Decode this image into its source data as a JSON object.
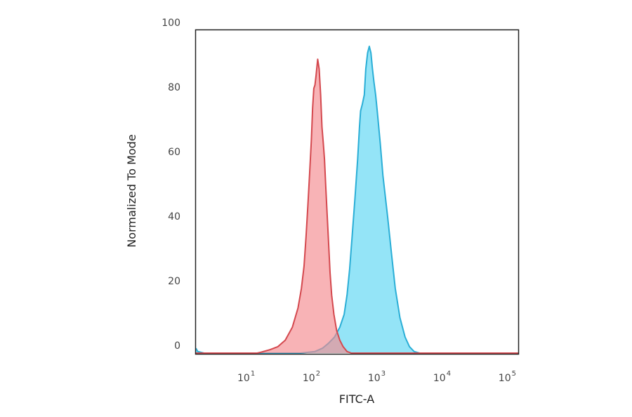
{
  "chart_data": {
    "type": "area",
    "title": "",
    "xlabel": "FITC-A",
    "ylabel": "Normalized To Mode",
    "xscale": "log",
    "xlim": [
      1.5,
      130000
    ],
    "ylim": [
      0,
      100
    ],
    "yticks": [
      {
        "value": 0,
        "label": "0"
      },
      {
        "value": 20,
        "label": "20"
      },
      {
        "value": 40,
        "label": "40"
      },
      {
        "value": 60,
        "label": "60"
      },
      {
        "value": 80,
        "label": "80"
      },
      {
        "value": 100,
        "label": "100"
      }
    ],
    "xticks": [
      {
        "value": 10,
        "base": "10",
        "exp": "1"
      },
      {
        "value": 100,
        "base": "10",
        "exp": "2"
      },
      {
        "value": 1000,
        "base": "10",
        "exp": "3"
      },
      {
        "value": 10000,
        "base": "10",
        "exp": "4"
      },
      {
        "value": 100000,
        "base": "10",
        "exp": "5"
      }
    ],
    "grid": false,
    "legend": "none",
    "series": [
      {
        "color": "#5bd6f2",
        "stroke": "#2aaed6",
        "points": [
          [
            1.5,
            1.5
          ],
          [
            1.6,
            0.5
          ],
          [
            2,
            0
          ],
          [
            60,
            0
          ],
          [
            100,
            0.5
          ],
          [
            130,
            1.5
          ],
          [
            160,
            3
          ],
          [
            200,
            5
          ],
          [
            240,
            8
          ],
          [
            280,
            12
          ],
          [
            310,
            18
          ],
          [
            340,
            26
          ],
          [
            370,
            36
          ],
          [
            410,
            48
          ],
          [
            450,
            60
          ],
          [
            480,
            70
          ],
          [
            500,
            75
          ],
          [
            530,
            77
          ],
          [
            570,
            80
          ],
          [
            600,
            88
          ],
          [
            640,
            93
          ],
          [
            680,
            95
          ],
          [
            720,
            93
          ],
          [
            760,
            88
          ],
          [
            800,
            84
          ],
          [
            850,
            80
          ],
          [
            900,
            75
          ],
          [
            1000,
            65
          ],
          [
            1100,
            55
          ],
          [
            1300,
            42
          ],
          [
            1500,
            30
          ],
          [
            1700,
            20
          ],
          [
            2000,
            11
          ],
          [
            2400,
            5
          ],
          [
            2800,
            2
          ],
          [
            3300,
            0.5
          ],
          [
            4000,
            0
          ],
          [
            130000,
            0
          ]
        ]
      },
      {
        "color": "#f48a8f",
        "stroke": "#d4484e",
        "points": [
          [
            1.5,
            0
          ],
          [
            13,
            0
          ],
          [
            15,
            0.3
          ],
          [
            20,
            1
          ],
          [
            27,
            2
          ],
          [
            35,
            4
          ],
          [
            45,
            8
          ],
          [
            55,
            14
          ],
          [
            62,
            20
          ],
          [
            68,
            27
          ],
          [
            73,
            36
          ],
          [
            78,
            46
          ],
          [
            83,
            56
          ],
          [
            88,
            66
          ],
          [
            92,
            76
          ],
          [
            96,
            82
          ],
          [
            100,
            83
          ],
          [
            104,
            86
          ],
          [
            110,
            91
          ],
          [
            116,
            88
          ],
          [
            122,
            80
          ],
          [
            128,
            70
          ],
          [
            134,
            65
          ],
          [
            140,
            60
          ],
          [
            146,
            52
          ],
          [
            152,
            45
          ],
          [
            160,
            36
          ],
          [
            170,
            25
          ],
          [
            180,
            18
          ],
          [
            195,
            12
          ],
          [
            215,
            7
          ],
          [
            240,
            4
          ],
          [
            270,
            2
          ],
          [
            310,
            0.5
          ],
          [
            360,
            0
          ],
          [
            130000,
            0
          ]
        ]
      }
    ]
  }
}
